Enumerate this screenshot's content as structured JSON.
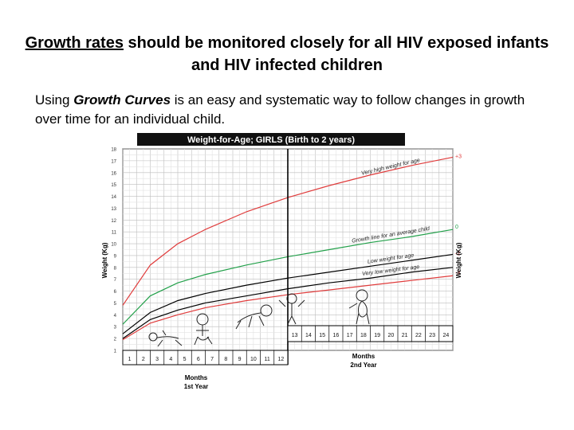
{
  "slide": {
    "title_underlined": "Growth rates",
    "title_rest": " should be monitored closely for all HIV exposed infants and HIV infected children",
    "body_pre": "Using ",
    "body_emph": "Growth Curves",
    "body_post": " is an easy and systematic way to follow changes in growth over time for an individual child."
  },
  "chart_data": {
    "type": "line",
    "title": "Weight-for-Age; GIRLS (Birth to 2 years)",
    "ylabel_left": "Weight (Kg)",
    "ylabel_right": "Weight (Kg)",
    "xlabel_year1": [
      "Months",
      "1st Year"
    ],
    "xlabel_year2": [
      "Months",
      "2nd Year"
    ],
    "ylim": [
      1,
      18
    ],
    "y_ticks": [
      1,
      2,
      3,
      4,
      5,
      6,
      7,
      8,
      9,
      10,
      11,
      12,
      13,
      14,
      15,
      16,
      17,
      18
    ],
    "x_month_labels": [
      "1",
      "2",
      "3",
      "4",
      "5",
      "6",
      "7",
      "8",
      "9",
      "10",
      "11",
      "12",
      "13",
      "14",
      "15",
      "16",
      "17",
      "18",
      "19",
      "20",
      "21",
      "22",
      "23",
      "24"
    ],
    "series": [
      {
        "name": "Very high weight for age",
        "marker": "+3",
        "color": "#e03c3c",
        "x": [
          0,
          2,
          4,
          6,
          9,
          12,
          15,
          18,
          21,
          24
        ],
        "y": [
          4.8,
          8.2,
          10.0,
          11.2,
          12.7,
          13.9,
          14.9,
          15.8,
          16.6,
          17.3
        ]
      },
      {
        "name": "Growth line for an average child",
        "marker": "0",
        "color": "#22a04a",
        "x": [
          0,
          2,
          4,
          6,
          9,
          12,
          15,
          18,
          21,
          24
        ],
        "y": [
          3.2,
          5.6,
          6.7,
          7.4,
          8.2,
          8.9,
          9.5,
          10.1,
          10.6,
          11.2
        ]
      },
      {
        "name": "Low weight for age",
        "marker": "-2",
        "color": "#000000",
        "x": [
          0,
          2,
          4,
          6,
          9,
          12,
          15,
          18,
          21,
          24
        ],
        "y": [
          2.4,
          4.2,
          5.2,
          5.8,
          6.5,
          7.1,
          7.6,
          8.1,
          8.6,
          9.1
        ]
      },
      {
        "name": "Very low weight for age",
        "marker": "-3",
        "color": "#000000",
        "x": [
          0,
          2,
          4,
          6,
          9,
          12,
          15,
          18,
          21,
          24
        ],
        "y": [
          2.0,
          3.6,
          4.4,
          5.0,
          5.6,
          6.2,
          6.7,
          7.1,
          7.6,
          8.0
        ]
      },
      {
        "name": "",
        "color": "#e03c3c",
        "x": [
          0,
          2,
          4,
          6,
          9,
          12,
          15,
          18,
          21,
          24
        ],
        "y": [
          1.9,
          3.3,
          4.0,
          4.6,
          5.2,
          5.7,
          6.1,
          6.5,
          6.9,
          7.3
        ]
      }
    ]
  }
}
